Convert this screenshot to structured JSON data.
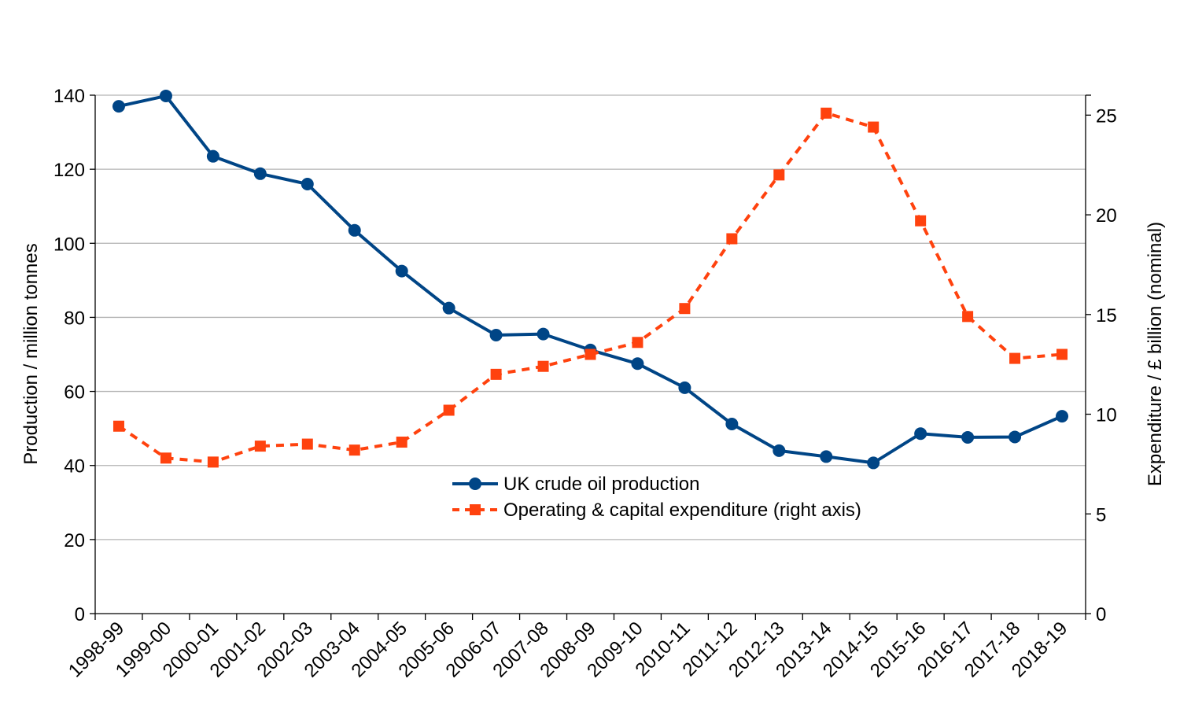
{
  "chart_data": {
    "type": "line",
    "categories": [
      "1998-99",
      "1999-00",
      "2000-01",
      "2001-02",
      "2002-03",
      "2003-04",
      "2004-05",
      "2005-06",
      "2006-07",
      "2007-08",
      "2008-09",
      "2009-10",
      "2010-11",
      "2011-12",
      "2012-13",
      "2013-14",
      "2014-15",
      "2015-16",
      "2016-17",
      "2017-18",
      "2018-19"
    ],
    "series": [
      {
        "name": "UK crude oil production",
        "axis": "left",
        "style": "solid-circle",
        "color": "#004586",
        "values": [
          137,
          139.8,
          123.5,
          118.8,
          116,
          103.5,
          92.5,
          82.5,
          75.2,
          75.5,
          71.2,
          67.5,
          61,
          51.2,
          44,
          42.4,
          40.7,
          48.6,
          47.6,
          47.7,
          53.3
        ]
      },
      {
        "name": "Operating & capital expenditure (right axis)",
        "axis": "right",
        "style": "dashed-square",
        "color": "#ff420e",
        "values": [
          9.4,
          7.8,
          7.6,
          8.4,
          8.5,
          8.2,
          8.6,
          10.2,
          12.0,
          12.4,
          13.0,
          13.6,
          15.3,
          18.8,
          22.0,
          25.1,
          24.4,
          19.7,
          14.9,
          12.8,
          13.0
        ]
      }
    ],
    "y_left": {
      "label": "Production / million tonnes",
      "ylim": [
        0,
        140
      ],
      "ticks": [
        "0",
        "20",
        "40",
        "60",
        "80",
        "100",
        "120",
        "140"
      ]
    },
    "y_right": {
      "label": "Expenditure / £ billion (nominal)",
      "ylim": [
        0,
        26
      ],
      "ticks": [
        "0",
        "5",
        "10",
        "15",
        "20",
        "25"
      ]
    },
    "grid": true,
    "legend_position": "center"
  }
}
